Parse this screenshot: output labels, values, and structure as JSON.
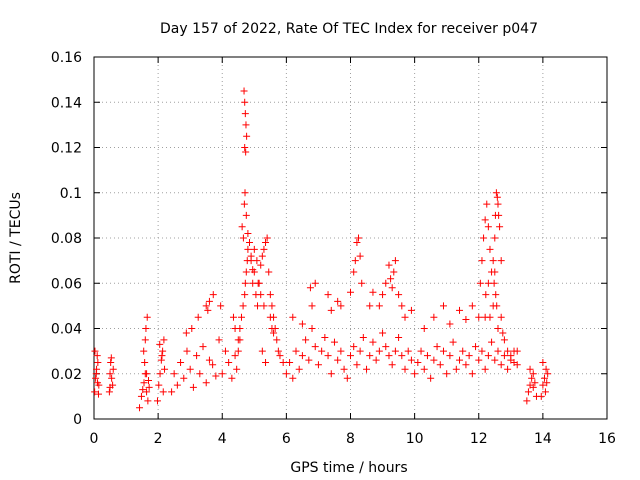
{
  "chart_data": {
    "type": "scatter",
    "title": "Day 157 of 2022, Rate Of TEC Index for receiver p047",
    "xlabel": "GPS time / hours",
    "ylabel": "ROTI / TECUs",
    "xlim": [
      0,
      16
    ],
    "ylim": [
      0,
      0.16
    ],
    "x_ticks": [
      0,
      2,
      4,
      6,
      8,
      10,
      12,
      14,
      16
    ],
    "x_tick_labels": [
      "0",
      "2",
      "4",
      "6",
      "8",
      "10",
      "12",
      "14",
      "16"
    ],
    "y_ticks": [
      0,
      0.02,
      0.04,
      0.06,
      0.08,
      0.1,
      0.12,
      0.14,
      0.16
    ],
    "y_tick_labels": [
      "0",
      "0.02",
      "0.04",
      "0.06",
      "0.08",
      "0.1",
      "0.12",
      "0.14",
      "0.16"
    ],
    "grid": true,
    "marker": "+",
    "color": "#ff0000",
    "series": [
      {
        "name": "p047",
        "x": [
          0.02,
          0.05,
          0.08,
          0.1,
          0.12,
          0.15,
          0.03,
          0.07,
          0.11,
          0.14,
          0.48,
          0.5,
          0.52,
          0.55,
          0.58,
          0.6,
          0.5,
          0.54,
          1.42,
          1.48,
          1.52,
          1.56,
          1.6,
          1.64,
          1.68,
          1.72,
          1.55,
          1.6,
          1.62,
          1.66,
          1.58,
          1.64,
          1.7,
          1.98,
          2.02,
          2.06,
          2.1,
          2.14,
          2.18,
          2.2,
          2.05,
          2.12,
          2.16,
          2.42,
          2.5,
          2.6,
          2.7,
          2.8,
          2.9,
          3.0,
          3.1,
          3.2,
          3.3,
          3.4,
          3.5,
          3.6,
          3.7,
          3.8,
          3.9,
          2.88,
          3.05,
          3.25,
          3.5,
          3.72,
          4.0,
          4.1,
          4.2,
          4.3,
          4.4,
          4.5,
          4.55,
          4.6,
          4.65,
          4.7,
          4.72,
          4.75,
          4.78,
          4.8,
          4.85,
          4.9,
          4.95,
          5.0,
          5.05,
          5.1,
          5.15,
          5.2,
          5.25,
          5.3,
          5.35,
          5.4,
          5.45,
          5.5,
          5.55,
          5.6,
          5.65,
          5.7,
          5.75,
          5.8,
          5.9,
          4.68,
          4.7,
          4.72,
          4.74,
          4.76,
          4.7,
          4.73,
          4.71,
          4.69,
          4.75,
          4.62,
          4.66,
          4.8,
          4.85,
          4.9,
          4.95,
          5.0,
          5.08,
          5.12,
          5.2,
          5.3,
          5.5,
          5.55,
          5.6,
          5.25,
          5.35,
          4.45,
          4.5,
          4.55,
          4.4,
          4.35,
          3.95,
          3.6,
          3.55,
          6.0,
          6.1,
          6.2,
          6.3,
          6.4,
          6.5,
          6.6,
          6.7,
          6.8,
          6.9,
          7.0,
          7.1,
          7.2,
          7.3,
          7.4,
          7.5,
          7.6,
          7.7,
          7.8,
          7.9,
          8.0,
          8.1,
          8.2,
          8.3,
          8.4,
          8.5,
          8.6,
          8.7,
          8.8,
          8.9,
          9.0,
          9.1,
          9.2,
          9.3,
          9.4,
          9.5,
          9.6,
          9.7,
          9.8,
          9.9,
          6.8,
          6.75,
          6.9,
          7.3,
          7.4,
          7.6,
          7.7,
          8.0,
          8.15,
          8.2,
          8.25,
          8.3,
          8.1,
          8.35,
          8.6,
          8.7,
          8.9,
          9.0,
          9.1,
          9.2,
          9.25,
          9.3,
          9.35,
          9.4,
          9.5,
          9.6,
          9.7,
          9.9,
          6.2,
          6.5,
          10.0,
          10.1,
          10.2,
          10.3,
          10.4,
          10.5,
          10.6,
          10.7,
          10.8,
          10.9,
          11.0,
          11.1,
          11.2,
          11.3,
          11.4,
          11.5,
          11.6,
          11.7,
          11.8,
          11.9,
          12.0,
          12.1,
          12.2,
          12.3,
          12.4,
          12.5,
          12.6,
          12.7,
          12.8,
          12.9,
          13.0,
          13.1,
          13.2,
          10.3,
          10.6,
          10.9,
          11.1,
          11.4,
          11.6,
          11.8,
          12.0,
          12.05,
          12.1,
          12.15,
          12.2,
          12.25,
          12.3,
          12.35,
          12.4,
          12.45,
          12.5,
          12.52,
          12.55,
          12.58,
          12.6,
          12.62,
          12.65,
          12.7,
          12.48,
          12.5,
          12.53,
          12.56,
          12.2,
          12.22,
          12.3,
          12.35,
          12.45,
          12.6,
          12.7,
          12.75,
          12.8,
          12.9,
          13.0,
          13.1,
          13.2,
          13.5,
          13.55,
          13.6,
          13.65,
          13.7,
          13.75,
          13.8,
          13.6,
          13.7,
          13.95,
          14.0,
          14.05,
          14.1,
          14.15,
          14.0,
          14.08,
          14.12
        ],
        "y": [
          0.012,
          0.018,
          0.022,
          0.028,
          0.025,
          0.015,
          0.03,
          0.02,
          0.016,
          0.011,
          0.012,
          0.02,
          0.025,
          0.018,
          0.015,
          0.022,
          0.014,
          0.027,
          0.005,
          0.01,
          0.013,
          0.016,
          0.02,
          0.012,
          0.008,
          0.014,
          0.03,
          0.035,
          0.04,
          0.045,
          0.025,
          0.02,
          0.017,
          0.008,
          0.015,
          0.02,
          0.026,
          0.03,
          0.035,
          0.022,
          0.033,
          0.028,
          0.012,
          0.012,
          0.02,
          0.015,
          0.025,
          0.018,
          0.03,
          0.022,
          0.014,
          0.028,
          0.02,
          0.032,
          0.016,
          0.026,
          0.024,
          0.019,
          0.035,
          0.038,
          0.04,
          0.045,
          0.05,
          0.055,
          0.02,
          0.03,
          0.025,
          0.018,
          0.028,
          0.035,
          0.04,
          0.045,
          0.05,
          0.055,
          0.06,
          0.065,
          0.07,
          0.075,
          0.078,
          0.07,
          0.06,
          0.065,
          0.055,
          0.05,
          0.06,
          0.068,
          0.072,
          0.075,
          0.078,
          0.08,
          0.065,
          0.055,
          0.05,
          0.045,
          0.04,
          0.035,
          0.03,
          0.028,
          0.025,
          0.145,
          0.14,
          0.135,
          0.13,
          0.125,
          0.12,
          0.118,
          0.1,
          0.095,
          0.09,
          0.085,
          0.08,
          0.082,
          0.078,
          0.072,
          0.066,
          0.075,
          0.07,
          0.06,
          0.055,
          0.05,
          0.045,
          0.04,
          0.038,
          0.03,
          0.025,
          0.022,
          0.03,
          0.035,
          0.04,
          0.045,
          0.05,
          0.052,
          0.048,
          0.02,
          0.025,
          0.018,
          0.03,
          0.022,
          0.028,
          0.035,
          0.026,
          0.04,
          0.032,
          0.024,
          0.03,
          0.036,
          0.028,
          0.02,
          0.034,
          0.026,
          0.03,
          0.022,
          0.018,
          0.028,
          0.032,
          0.024,
          0.03,
          0.036,
          0.022,
          0.028,
          0.034,
          0.026,
          0.03,
          0.038,
          0.032,
          0.028,
          0.024,
          0.03,
          0.036,
          0.028,
          0.022,
          0.03,
          0.026,
          0.05,
          0.058,
          0.06,
          0.055,
          0.048,
          0.052,
          0.05,
          0.056,
          0.07,
          0.078,
          0.08,
          0.072,
          0.065,
          0.06,
          0.05,
          0.056,
          0.05,
          0.055,
          0.06,
          0.068,
          0.062,
          0.058,
          0.065,
          0.07,
          0.055,
          0.05,
          0.045,
          0.048,
          0.045,
          0.042,
          0.02,
          0.025,
          0.03,
          0.022,
          0.028,
          0.018,
          0.026,
          0.032,
          0.024,
          0.03,
          0.02,
          0.028,
          0.034,
          0.022,
          0.026,
          0.03,
          0.024,
          0.028,
          0.02,
          0.032,
          0.026,
          0.03,
          0.022,
          0.028,
          0.034,
          0.026,
          0.03,
          0.024,
          0.028,
          0.022,
          0.026,
          0.03,
          0.024,
          0.04,
          0.045,
          0.05,
          0.042,
          0.048,
          0.044,
          0.05,
          0.045,
          0.06,
          0.07,
          0.08,
          0.088,
          0.095,
          0.085,
          0.075,
          0.065,
          0.07,
          0.08,
          0.09,
          0.1,
          0.098,
          0.095,
          0.09,
          0.085,
          0.07,
          0.06,
          0.065,
          0.055,
          0.05,
          0.045,
          0.055,
          0.06,
          0.045,
          0.05,
          0.04,
          0.045,
          0.038,
          0.035,
          0.03,
          0.028,
          0.025,
          0.03,
          0.008,
          0.012,
          0.015,
          0.018,
          0.02,
          0.016,
          0.01,
          0.022,
          0.014,
          0.01,
          0.015,
          0.018,
          0.022,
          0.02,
          0.025,
          0.012,
          0.016
        ]
      }
    ]
  }
}
